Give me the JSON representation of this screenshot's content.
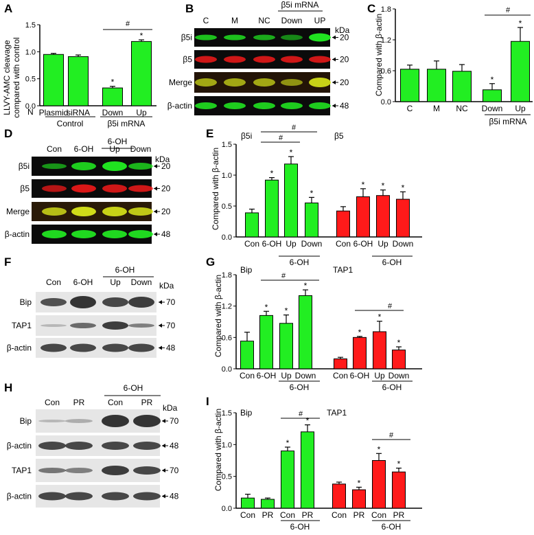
{
  "colors": {
    "green": "#22ee22",
    "red": "#ff1a1a",
    "blot_bg_fluor": "#0b0b0b",
    "blot_bg_wb": "#e6e6e6",
    "band_wb": "#2a2a2a"
  },
  "panels": {
    "A": {
      "letter": "A",
      "ylabel_line1": "LLVY-AMC cleavage",
      "ylabel_line2": "compared with control",
      "n_label": "N",
      "group_control": "Control",
      "group_b5i": "β5i mRNA",
      "sig_hash": "#",
      "sig_star": "*"
    },
    "B": {
      "letter": "B",
      "lanes": [
        "C",
        "M",
        "NC",
        "Down",
        "UP"
      ],
      "group_b5i": "β5i mRNA",
      "kda": "kDa",
      "rows": [
        {
          "label": "β5i",
          "mw": "20"
        },
        {
          "label": "β5",
          "mw": "20"
        },
        {
          "label": "Merge",
          "mw": "20"
        },
        {
          "label": "β-actin",
          "mw": "48"
        }
      ]
    },
    "C": {
      "letter": "C",
      "ylabel": "Compared with β-actin",
      "group_b5i": "β5i mRNA",
      "sig_hash": "#",
      "sig_star": "*"
    },
    "D": {
      "letter": "D",
      "lanes": [
        "Con",
        "6-OH",
        "Up",
        "Down"
      ],
      "group": "6-OH",
      "kda": "kDa",
      "rows": [
        {
          "label": "β5i",
          "mw": "20"
        },
        {
          "label": "β5",
          "mw": "20"
        },
        {
          "label": "Merge",
          "mw": "20"
        },
        {
          "label": "β-actin",
          "mw": "48"
        }
      ]
    },
    "E": {
      "letter": "E",
      "ylabel": "Compared with β-actin",
      "group": "6-OH",
      "sig_hash": "#",
      "sig_star": "*"
    },
    "F": {
      "letter": "F",
      "lanes": [
        "Con",
        "6-OH",
        "Up",
        "Down"
      ],
      "group": "6-OH",
      "kda": "kDa",
      "rows": [
        {
          "label": "Bip",
          "mw": "70"
        },
        {
          "label": "TAP1",
          "mw": "70"
        },
        {
          "label": "β-actin",
          "mw": "48"
        }
      ]
    },
    "G": {
      "letter": "G",
      "ylabel": "Compared with β-actin",
      "group": "6-OH",
      "sig_hash": "#",
      "sig_star": "*"
    },
    "H": {
      "letter": "H",
      "lanes": [
        "Con",
        "PR",
        "Con",
        "PR"
      ],
      "group": "6-OH",
      "kda": "kDa",
      "rows": [
        {
          "label": "Bip",
          "mw": "70"
        },
        {
          "label": "β-actin",
          "mw": "48"
        },
        {
          "label": "TAP1",
          "mw": "70"
        },
        {
          "label": "β-actin",
          "mw": "48"
        }
      ]
    },
    "I": {
      "letter": "I",
      "ylabel": "Compared with β-actin",
      "group": "6-OH",
      "sig_hash": "#",
      "sig_star": "*"
    }
  },
  "chart_data": [
    {
      "id": "A",
      "type": "bar",
      "categories": [
        "Plasmid",
        "siRNA",
        "Down",
        "Up"
      ],
      "values": [
        0.95,
        0.91,
        0.33,
        1.19
      ],
      "errors": [
        0.02,
        0.03,
        0.03,
        0.03
      ],
      "ylim": [
        0,
        1.5
      ],
      "yticks": [
        0.0,
        0.5,
        1.0,
        1.5
      ],
      "ytick_labels": [
        "0.0",
        "0.5",
        "1.0",
        "1.5"
      ],
      "star": [
        2,
        3
      ]
    },
    {
      "id": "C",
      "type": "bar",
      "categories": [
        "C",
        "M",
        "NC",
        "Down",
        "Up"
      ],
      "values": [
        0.63,
        0.63,
        0.59,
        0.23,
        1.17
      ],
      "errors": [
        0.08,
        0.16,
        0.13,
        0.12,
        0.27
      ],
      "ylim": [
        0,
        1.8
      ],
      "yticks": [
        0.0,
        0.6,
        1.2,
        1.8
      ],
      "ytick_labels": [
        "0.0",
        "0.6",
        "1.2",
        "1.8"
      ],
      "star": [
        3,
        4
      ]
    },
    {
      "id": "E",
      "type": "bar",
      "ylim": [
        0,
        1.5
      ],
      "yticks": [
        0.0,
        0.5,
        1.0,
        1.5
      ],
      "ytick_labels": [
        "0.0",
        "0.5",
        "1.0",
        "1.5"
      ],
      "series": [
        {
          "name": "β5i",
          "color": "green",
          "categories": [
            "Con",
            "6-OH",
            "Up",
            "Down"
          ],
          "values": [
            0.39,
            0.92,
            1.18,
            0.55
          ],
          "errors": [
            0.06,
            0.04,
            0.12,
            0.09
          ],
          "star": [
            1,
            2,
            3
          ]
        },
        {
          "name": "β5",
          "color": "red",
          "categories": [
            "Con",
            "6-OH",
            "Up",
            "Down"
          ],
          "values": [
            0.42,
            0.65,
            0.67,
            0.61
          ],
          "errors": [
            0.07,
            0.13,
            0.09,
            0.12
          ],
          "star": [
            1,
            2,
            3
          ]
        }
      ]
    },
    {
      "id": "G",
      "type": "bar",
      "ylim": [
        0,
        1.8
      ],
      "yticks": [
        0.0,
        0.6,
        1.2,
        1.8
      ],
      "ytick_labels": [
        "0.0",
        "0.6",
        "1.2",
        "1.8"
      ],
      "series": [
        {
          "name": "Bip",
          "color": "green",
          "categories": [
            "Con",
            "6-OH",
            "Up",
            "Down"
          ],
          "values": [
            0.53,
            1.02,
            0.87,
            1.4
          ],
          "errors": [
            0.17,
            0.08,
            0.16,
            0.11
          ],
          "star": [
            1,
            2,
            3
          ]
        },
        {
          "name": "TAP1",
          "color": "red",
          "categories": [
            "Con",
            "6-OH",
            "Up",
            "Down"
          ],
          "values": [
            0.19,
            0.6,
            0.71,
            0.36
          ],
          "errors": [
            0.03,
            0.02,
            0.2,
            0.06
          ],
          "star": [
            1,
            2,
            3
          ]
        }
      ]
    },
    {
      "id": "I",
      "type": "bar",
      "ylim": [
        0,
        1.5
      ],
      "yticks": [
        0.0,
        0.5,
        1.0,
        1.5
      ],
      "ytick_labels": [
        "0.0",
        "0.5",
        "1.0",
        "1.5"
      ],
      "series": [
        {
          "name": "Bip",
          "color": "green",
          "categories": [
            "Con",
            "PR",
            "Con",
            "PR"
          ],
          "values": [
            0.16,
            0.14,
            0.9,
            1.2
          ],
          "errors": [
            0.06,
            0.02,
            0.06,
            0.11
          ],
          "star": [
            2,
            3
          ]
        },
        {
          "name": "TAP1",
          "color": "red",
          "categories": [
            "Con",
            "PR",
            "Con",
            "PR"
          ],
          "values": [
            0.38,
            0.29,
            0.75,
            0.57
          ],
          "errors": [
            0.03,
            0.04,
            0.11,
            0.06
          ],
          "star": [
            1,
            2,
            3
          ]
        }
      ]
    }
  ]
}
